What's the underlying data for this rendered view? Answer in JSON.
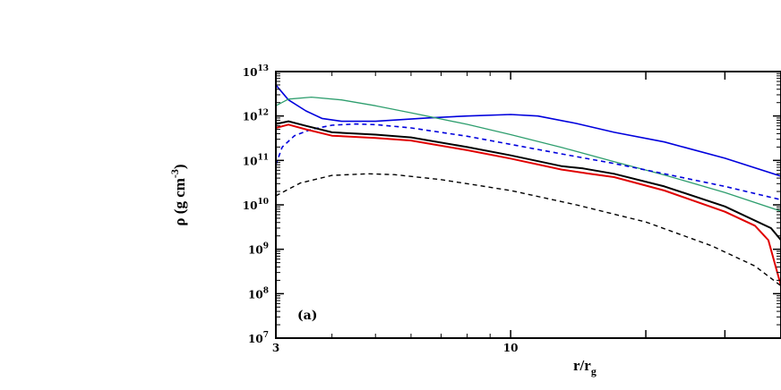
{
  "chart_data": {
    "type": "line",
    "panel_label": "(a)",
    "xlabel": "r/r",
    "xlabel_sub": "g",
    "ylabel": "ρ (g cm",
    "ylabel_sup": "-3",
    "ylabel_close": ")",
    "x_scale": "log",
    "y_scale": "log",
    "xlim": [
      3,
      40
    ],
    "ylim": [
      10000000.0,
      10000000000000.0
    ],
    "x_ticks": [
      {
        "value": 3,
        "label": "3"
      },
      {
        "value": 10,
        "label": "10"
      }
    ],
    "y_ticks": [
      {
        "value": 10000000.0,
        "base": "10",
        "exp": "7"
      },
      {
        "value": 100000000.0,
        "base": "10",
        "exp": "8"
      },
      {
        "value": 1000000000.0,
        "base": "10",
        "exp": "9"
      },
      {
        "value": 10000000000.0,
        "base": "10",
        "exp": "10"
      },
      {
        "value": 100000000000.0,
        "base": "10",
        "exp": "11"
      },
      {
        "value": 1000000000000.0,
        "base": "10",
        "exp": "12"
      },
      {
        "value": 10000000000000.0,
        "base": "10",
        "exp": "13"
      }
    ],
    "grid": false,
    "series": [
      {
        "color": "#0000dd",
        "dash": "solid",
        "width": 1.6,
        "x": [
          3.0,
          3.2,
          3.5,
          3.8,
          4.2,
          5.0,
          6.5,
          8.0,
          10.0,
          11.5,
          14.0,
          17.0,
          22.0,
          30.0,
          40.0
        ],
        "y": [
          5000000000000.0,
          2300000000000.0,
          1300000000000.0,
          880000000000.0,
          760000000000.0,
          760000000000.0,
          900000000000.0,
          1000000000000.0,
          1080000000000.0,
          1000000000000.0,
          680000000000.0,
          430000000000.0,
          260000000000.0,
          112000000000.0,
          44000000000.0
        ]
      },
      {
        "color": "#2e9e6e",
        "dash": "solid",
        "width": 1.3,
        "x": [
          3.0,
          3.2,
          3.6,
          4.2,
          5.0,
          6.0,
          8.0,
          10.0,
          13.0,
          17.0,
          22.0,
          30.0,
          40.0
        ],
        "y": [
          1700000000000.0,
          2400000000000.0,
          2650000000000.0,
          2300000000000.0,
          1700000000000.0,
          1180000000000.0,
          650000000000.0,
          380000000000.0,
          195000000000.0,
          94000000000.0,
          47000000000.0,
          19000000000.0,
          7200000000.0
        ]
      },
      {
        "color": "#0000dd",
        "dash": "5,4",
        "width": 1.6,
        "x": [
          3.0,
          3.1,
          3.3,
          3.6,
          4.0,
          4.5,
          5.0,
          6.0,
          8.0,
          10.0,
          13.0,
          17.0,
          22.0,
          30.0,
          40.0
        ],
        "y": [
          80000000000.0,
          200000000000.0,
          360000000000.0,
          500000000000.0,
          620000000000.0,
          660000000000.0,
          640000000000.0,
          540000000000.0,
          350000000000.0,
          230000000000.0,
          140000000000.0,
          85000000000.0,
          50000000000.0,
          26000000000.0,
          13000000000.0
        ]
      },
      {
        "color": "#000000",
        "dash": "solid",
        "width": 2.0,
        "x": [
          3.0,
          3.2,
          3.5,
          4.0,
          5.0,
          6.0,
          8.0,
          10.0,
          13.0,
          14.5,
          17.0,
          22.0,
          30.0,
          38.0,
          40.0
        ],
        "y": [
          660000000000.0,
          760000000000.0,
          600000000000.0,
          430000000000.0,
          380000000000.0,
          330000000000.0,
          200000000000.0,
          130000000000.0,
          74000000000.0,
          66000000000.0,
          50000000000.0,
          26000000000.0,
          9200000000.0,
          3000000000.0,
          1600000000.0
        ]
      },
      {
        "color": "#e00000",
        "dash": "solid",
        "width": 2.0,
        "x": [
          3.0,
          3.2,
          3.5,
          4.0,
          5.0,
          6.0,
          8.0,
          10.0,
          13.0,
          15.0,
          17.0,
          22.0,
          30.0,
          35.0,
          37.5,
          40.0
        ],
        "y": [
          540000000000.0,
          640000000000.0,
          500000000000.0,
          360000000000.0,
          320000000000.0,
          280000000000.0,
          170000000000.0,
          110000000000.0,
          62000000000.0,
          50000000000.0,
          42000000000.0,
          21000000000.0,
          7000000000.0,
          3400000000.0,
          1600000000.0,
          150000000.0
        ]
      },
      {
        "color": "#000000",
        "dash": "5,4",
        "width": 1.4,
        "x": [
          3.0,
          3.4,
          4.0,
          4.8,
          5.5,
          7.0,
          10.0,
          14.0,
          20.0,
          28.0,
          35.0,
          40.0
        ],
        "y": [
          16000000000.0,
          31000000000.0,
          46000000000.0,
          50000000000.0,
          48000000000.0,
          37000000000.0,
          21000000000.0,
          10000000000.0,
          4100000000.0,
          1200000000.0,
          420000000.0,
          150000000.0
        ]
      }
    ]
  }
}
